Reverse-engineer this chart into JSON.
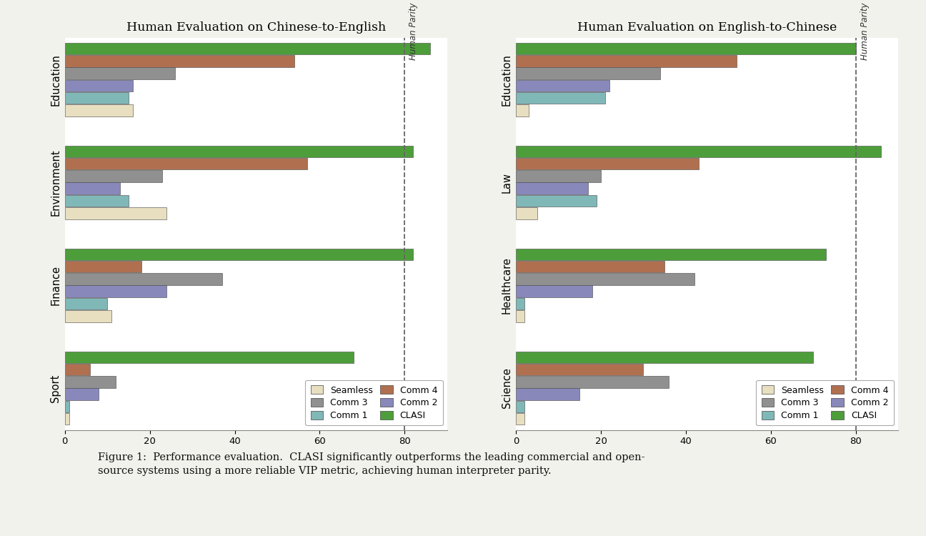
{
  "zh_en": {
    "title": "Human Evaluation on Chinese-to-English",
    "categories": [
      "Sport",
      "Finance",
      "Environment",
      "Education"
    ],
    "series": {
      "CLASI": [
        68,
        82,
        82,
        86
      ],
      "Comm 4": [
        6,
        18,
        57,
        54
      ],
      "Comm 3": [
        12,
        37,
        23,
        26
      ],
      "Comm 2": [
        8,
        24,
        13,
        16
      ],
      "Comm 1": [
        1,
        10,
        15,
        15
      ],
      "Seamless": [
        1,
        11,
        24,
        16
      ]
    },
    "human_parity": 80
  },
  "en_zh": {
    "title": "Human Evaluation on English-to-Chinese",
    "categories": [
      "Science",
      "Healthcare",
      "Law",
      "Education"
    ],
    "series": {
      "CLASI": [
        70,
        73,
        86,
        80
      ],
      "Comm 4": [
        30,
        35,
        43,
        52
      ],
      "Comm 3": [
        36,
        42,
        20,
        34
      ],
      "Comm 2": [
        15,
        18,
        17,
        22
      ],
      "Comm 1": [
        2,
        2,
        19,
        21
      ],
      "Seamless": [
        2,
        2,
        5,
        3
      ]
    },
    "human_parity": 80
  },
  "colors": {
    "CLASI": "#4d9e3a",
    "Comm 4": "#b07050",
    "Comm 3": "#909090",
    "Comm 2": "#8888bb",
    "Comm 1": "#80b8b8",
    "Seamless": "#e8dfc0"
  },
  "bar_order": [
    "CLASI",
    "Comm 4",
    "Comm 3",
    "Comm 2",
    "Comm 1",
    "Seamless"
  ],
  "legend_order_col1": [
    "Seamless",
    "Comm 1",
    "Comm 2"
  ],
  "legend_order_col2": [
    "Comm 3",
    "Comm 4",
    "CLASI"
  ],
  "xlim": [
    0,
    90
  ],
  "human_parity_label": "Human Parity",
  "caption": "Figure 1:  Performance evaluation.  CLASI significantly outperforms the leading commercial and open-\nsource systems using a more reliable VIP metric, achieving human interpreter parity.",
  "background_color": "#ffffff",
  "figure_bg": "#f2f2ec"
}
